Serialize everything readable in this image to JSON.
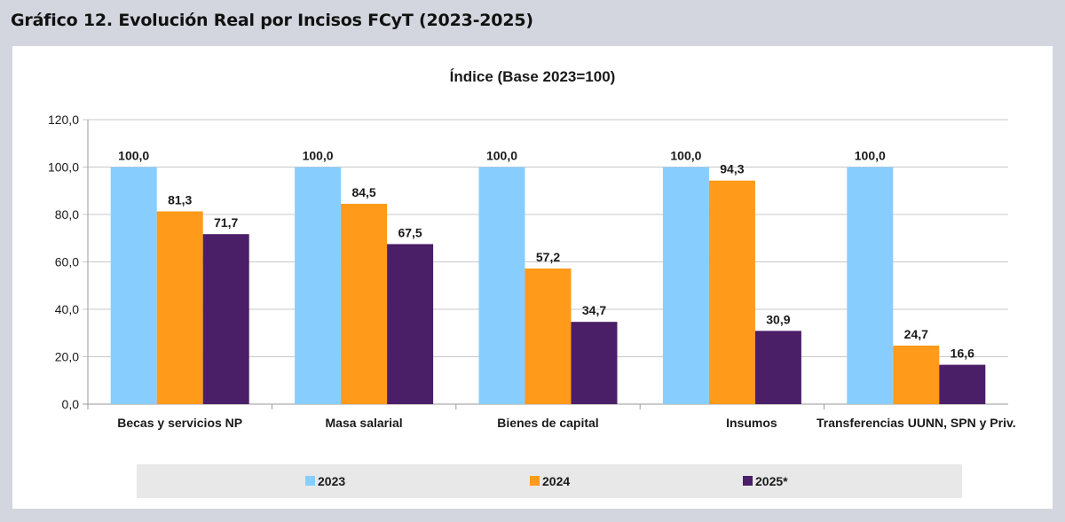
{
  "header": {
    "title": "Gráfico 12. Evolución Real por Incisos FCyT (2023-2025)"
  },
  "chart_data": {
    "type": "bar",
    "title": "Índice (Base 2023=100)",
    "xlabel": "",
    "ylabel": "",
    "ylim": [
      0,
      120
    ],
    "y_ticks": [
      "0,0",
      "20,0",
      "40,0",
      "60,0",
      "80,0",
      "100,0",
      "120,0"
    ],
    "grid": true,
    "legend_position": "bottom",
    "categories": [
      "Becas y servicios NP",
      "Masa salarial",
      "Bienes de capital",
      "Insumos",
      "Transferencias UUNN, SPN y Priv."
    ],
    "series": [
      {
        "name": "2023",
        "color": "#87ceff",
        "values": [
          100.0,
          100.0,
          100.0,
          100.0,
          100.0
        ],
        "labels": [
          "100,0",
          "100,0",
          "100,0",
          "100,0",
          "100,0"
        ]
      },
      {
        "name": "2024",
        "color": "#ff9a1a",
        "values": [
          81.3,
          84.5,
          57.2,
          94.3,
          24.7
        ],
        "labels": [
          "81,3",
          "84,5",
          "57,2",
          "94,3",
          "24,7"
        ]
      },
      {
        "name": "2025*",
        "color": "#4b1e68",
        "values": [
          71.7,
          67.5,
          34.7,
          30.9,
          16.6
        ],
        "labels": [
          "71,7",
          "67,5",
          "34,7",
          "30,9",
          "16,6"
        ]
      }
    ]
  }
}
